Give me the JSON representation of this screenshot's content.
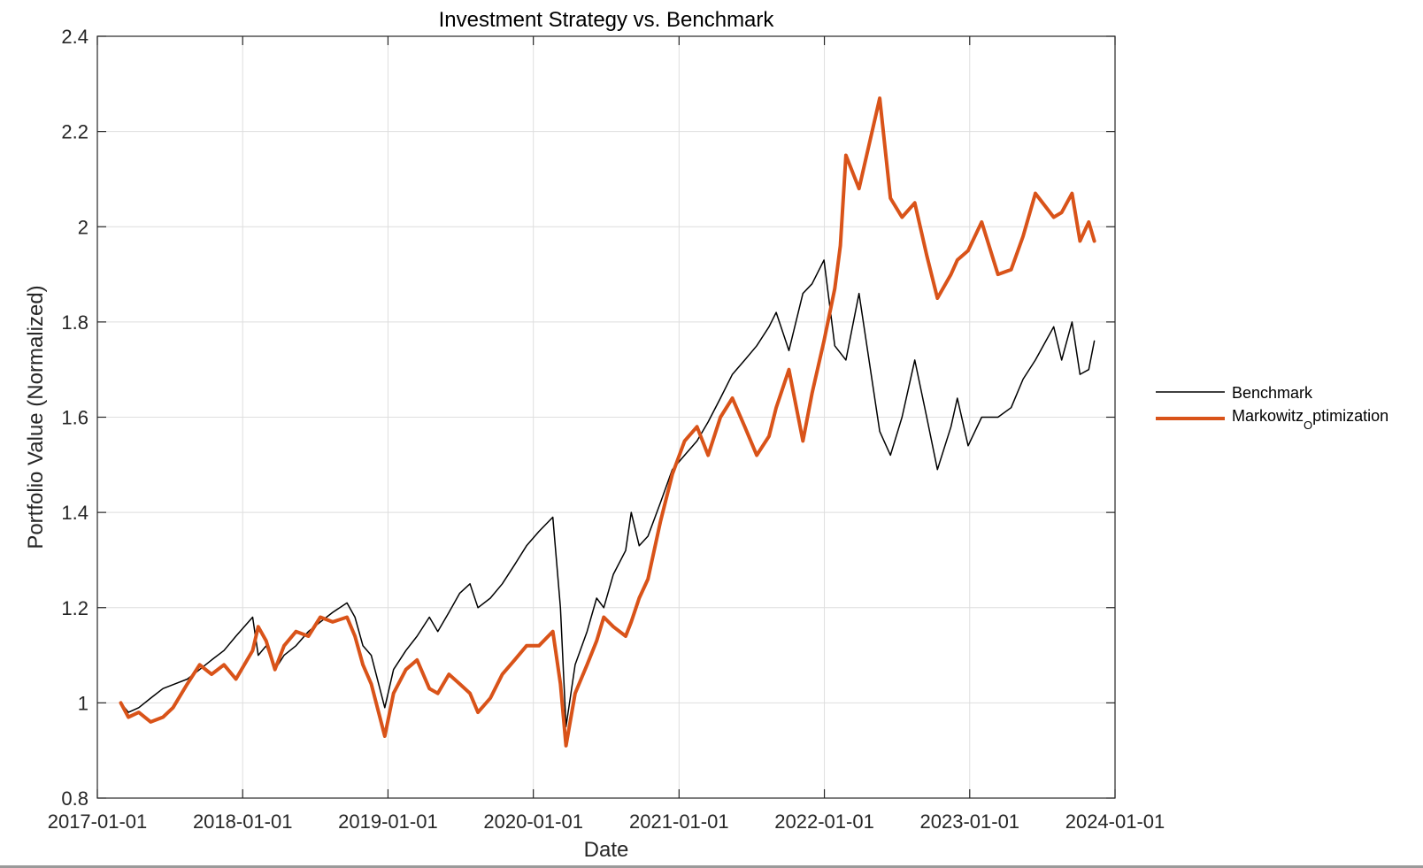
{
  "chart_data": {
    "type": "line",
    "title": "Investment Strategy vs. Benchmark",
    "xlabel": "Date",
    "ylabel": "Portfolio Value (Normalized)",
    "xlim": [
      "2017-01-01",
      "2024-01-01"
    ],
    "ylim": [
      0.8,
      2.4
    ],
    "x_ticks": [
      "2017-01-01",
      "2018-01-01",
      "2019-01-01",
      "2020-01-01",
      "2021-01-01",
      "2022-01-01",
      "2023-01-01",
      "2024-01-01"
    ],
    "y_ticks": [
      0.8,
      1.0,
      1.2,
      1.4,
      1.6,
      1.8,
      2.0,
      2.2,
      2.4
    ],
    "y_tick_labels": [
      "0.8",
      "1",
      "1.2",
      "1.4",
      "1.6",
      "1.8",
      "2",
      "2.2",
      "2.4"
    ],
    "grid": true,
    "legend_position": "outside-right",
    "legend": {
      "benchmark": "Benchmark",
      "markowitz_main": "Markowitz",
      "markowitz_sub": "O",
      "markowitz_rest": "ptimization"
    },
    "series": [
      {
        "name": "Benchmark",
        "color": "#000000",
        "x": [
          "2017-03-01",
          "2017-03-20",
          "2017-04-15",
          "2017-05-15",
          "2017-06-15",
          "2017-07-15",
          "2017-08-15",
          "2017-09-15",
          "2017-10-15",
          "2017-11-15",
          "2017-12-15",
          "2018-01-26",
          "2018-02-09",
          "2018-03-01",
          "2018-03-23",
          "2018-04-15",
          "2018-05-15",
          "2018-06-15",
          "2018-07-15",
          "2018-08-15",
          "2018-09-20",
          "2018-10-10",
          "2018-10-30",
          "2018-11-20",
          "2018-12-24",
          "2019-01-15",
          "2019-02-15",
          "2019-03-15",
          "2019-04-15",
          "2019-05-06",
          "2019-06-03",
          "2019-06-30",
          "2019-07-26",
          "2019-08-15",
          "2019-09-15",
          "2019-10-15",
          "2019-11-15",
          "2019-12-15",
          "2020-01-15",
          "2020-02-19",
          "2020-03-09",
          "2020-03-23",
          "2020-04-15",
          "2020-05-15",
          "2020-06-08",
          "2020-06-26",
          "2020-07-20",
          "2020-08-20",
          "2020-09-03",
          "2020-09-23",
          "2020-10-15",
          "2020-11-15",
          "2020-12-15",
          "2021-01-15",
          "2021-02-15",
          "2021-03-15",
          "2021-04-15",
          "2021-05-15",
          "2021-06-15",
          "2021-07-15",
          "2021-08-15",
          "2021-09-02",
          "2021-10-04",
          "2021-11-08",
          "2021-12-01",
          "2021-12-31",
          "2022-01-27",
          "2022-02-24",
          "2022-03-29",
          "2022-05-20",
          "2022-06-16",
          "2022-07-15",
          "2022-08-16",
          "2022-09-15",
          "2022-10-12",
          "2022-11-15",
          "2022-12-01",
          "2022-12-28",
          "2023-01-31",
          "2023-03-13",
          "2023-04-15",
          "2023-05-15",
          "2023-06-15",
          "2023-07-31",
          "2023-08-20",
          "2023-09-15",
          "2023-10-05",
          "2023-10-27",
          "2023-11-10"
        ],
        "y": [
          1.0,
          0.98,
          0.99,
          1.01,
          1.03,
          1.04,
          1.05,
          1.07,
          1.09,
          1.11,
          1.14,
          1.18,
          1.1,
          1.12,
          1.07,
          1.1,
          1.12,
          1.15,
          1.17,
          1.19,
          1.21,
          1.18,
          1.12,
          1.1,
          0.99,
          1.07,
          1.11,
          1.14,
          1.18,
          1.15,
          1.19,
          1.23,
          1.25,
          1.2,
          1.22,
          1.25,
          1.29,
          1.33,
          1.36,
          1.39,
          1.2,
          0.95,
          1.08,
          1.15,
          1.22,
          1.2,
          1.27,
          1.32,
          1.4,
          1.33,
          1.35,
          1.42,
          1.49,
          1.52,
          1.55,
          1.59,
          1.64,
          1.69,
          1.72,
          1.75,
          1.79,
          1.82,
          1.74,
          1.86,
          1.88,
          1.93,
          1.75,
          1.72,
          1.86,
          1.57,
          1.52,
          1.6,
          1.72,
          1.6,
          1.49,
          1.58,
          1.64,
          1.54,
          1.6,
          1.6,
          1.62,
          1.68,
          1.72,
          1.79,
          1.72,
          1.8,
          1.69,
          1.7,
          1.76
        ]
      },
      {
        "name": "Markowitz_Optimization",
        "color": "#D95319",
        "x": [
          "2017-03-01",
          "2017-03-20",
          "2017-04-15",
          "2017-05-15",
          "2017-06-15",
          "2017-07-10",
          "2017-08-15",
          "2017-09-15",
          "2017-10-15",
          "2017-11-15",
          "2017-12-15",
          "2018-01-26",
          "2018-02-09",
          "2018-03-01",
          "2018-03-23",
          "2018-04-15",
          "2018-05-15",
          "2018-06-15",
          "2018-07-15",
          "2018-08-15",
          "2018-09-20",
          "2018-10-10",
          "2018-10-30",
          "2018-11-20",
          "2018-12-24",
          "2019-01-15",
          "2019-02-15",
          "2019-03-15",
          "2019-04-15",
          "2019-05-06",
          "2019-06-03",
          "2019-06-30",
          "2019-07-26",
          "2019-08-15",
          "2019-09-15",
          "2019-10-15",
          "2019-11-15",
          "2019-12-15",
          "2020-01-15",
          "2020-02-19",
          "2020-03-09",
          "2020-03-23",
          "2020-04-15",
          "2020-05-15",
          "2020-06-08",
          "2020-06-26",
          "2020-07-20",
          "2020-08-20",
          "2020-09-03",
          "2020-09-23",
          "2020-10-15",
          "2020-11-15",
          "2020-12-15",
          "2021-01-15",
          "2021-02-15",
          "2021-03-15",
          "2021-04-15",
          "2021-05-15",
          "2021-06-15",
          "2021-07-15",
          "2021-08-15",
          "2021-09-02",
          "2021-10-04",
          "2021-11-08",
          "2021-12-01",
          "2021-12-31",
          "2022-01-27",
          "2022-02-10",
          "2022-02-24",
          "2022-03-29",
          "2022-05-20",
          "2022-06-16",
          "2022-07-15",
          "2022-08-16",
          "2022-09-15",
          "2022-10-12",
          "2022-11-15",
          "2022-12-01",
          "2022-12-28",
          "2023-01-31",
          "2023-03-13",
          "2023-04-15",
          "2023-05-15",
          "2023-06-15",
          "2023-07-31",
          "2023-08-20",
          "2023-09-15",
          "2023-10-05",
          "2023-10-27",
          "2023-11-10"
        ],
        "y": [
          1.0,
          0.97,
          0.98,
          0.96,
          0.97,
          0.99,
          1.04,
          1.08,
          1.06,
          1.08,
          1.05,
          1.11,
          1.16,
          1.13,
          1.07,
          1.12,
          1.15,
          1.14,
          1.18,
          1.17,
          1.18,
          1.14,
          1.08,
          1.04,
          0.93,
          1.02,
          1.07,
          1.09,
          1.03,
          1.02,
          1.06,
          1.04,
          1.02,
          0.98,
          1.01,
          1.06,
          1.09,
          1.12,
          1.12,
          1.15,
          1.04,
          0.91,
          1.02,
          1.08,
          1.13,
          1.18,
          1.16,
          1.14,
          1.17,
          1.22,
          1.26,
          1.38,
          1.48,
          1.55,
          1.58,
          1.52,
          1.6,
          1.64,
          1.58,
          1.52,
          1.56,
          1.62,
          1.7,
          1.55,
          1.65,
          1.76,
          1.87,
          1.96,
          2.15,
          2.08,
          2.27,
          2.06,
          2.02,
          2.05,
          1.94,
          1.85,
          1.9,
          1.93,
          1.95,
          2.01,
          1.9,
          1.91,
          1.98,
          2.07,
          2.02,
          2.03,
          2.07,
          1.97,
          2.01,
          1.97
        ]
      }
    ]
  }
}
